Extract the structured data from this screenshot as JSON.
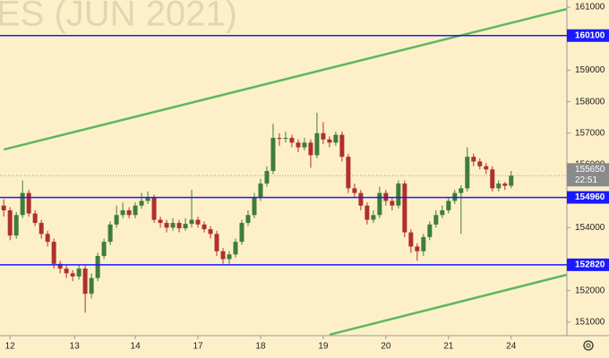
{
  "chart_data": {
    "type": "candlestick",
    "title": "ES (JUN 2021)",
    "xlim": [
      -0.6,
      89.9
    ],
    "xticks": [
      {
        "value": 1,
        "label": "12"
      },
      {
        "value": 11.3,
        "label": "13"
      },
      {
        "value": 21,
        "label": "14"
      },
      {
        "value": 31,
        "label": "17"
      },
      {
        "value": 41,
        "label": "18"
      },
      {
        "value": 51,
        "label": "19"
      },
      {
        "value": 61,
        "label": "20"
      },
      {
        "value": 71,
        "label": "21"
      },
      {
        "value": 81,
        "label": "24"
      }
    ],
    "ylim": [
      150570,
      161230
    ],
    "yticks": [
      151000,
      152000,
      154000,
      156000,
      157000,
      158000,
      159000,
      161000
    ],
    "up_color": "#3f7d3a",
    "down_color": "#b0302b",
    "open": [
      154700,
      154550,
      153750,
      154400,
      155100,
      154450,
      154150,
      153800,
      153550,
      152850,
      152700,
      152550,
      152450,
      152700,
      151900,
      152400,
      153100,
      153550,
      154100,
      154400,
      154550,
      154400,
      154700,
      154850,
      154950,
      154250,
      154150,
      154000,
      154150,
      153980,
      154120,
      154250,
      154100,
      153950,
      153800,
      153250,
      153000,
      153150,
      153550,
      154150,
      154400,
      154950,
      155400,
      155800,
      156850,
      156820,
      156850,
      156700,
      156550,
      156700,
      156300,
      157000,
      156800,
      156700,
      156950,
      156250,
      155250,
      155100,
      154700,
      154250,
      154400,
      155100,
      154850,
      154700,
      155400,
      153850,
      153400,
      153250,
      153700,
      154100,
      154400,
      154550,
      154850,
      155100,
      155250,
      156250,
      156100,
      155950,
      155850,
      155250,
      155400,
      155330
    ],
    "high": [
      154900,
      154650,
      154500,
      155500,
      155200,
      154550,
      154250,
      153900,
      153650,
      152950,
      152800,
      152650,
      152800,
      152800,
      152550,
      153200,
      153650,
      154200,
      154700,
      154800,
      154650,
      154800,
      155100,
      155150,
      155050,
      154350,
      154250,
      154300,
      154250,
      154300,
      155200,
      154350,
      154200,
      154050,
      153900,
      153350,
      153250,
      153650,
      154250,
      154550,
      155100,
      155550,
      155950,
      157300,
      157000,
      157050,
      156950,
      156800,
      156850,
      156800,
      157650,
      157350,
      156900,
      157050,
      157050,
      156350,
      155400,
      155200,
      154800,
      154550,
      155300,
      155200,
      154950,
      155500,
      155500,
      153950,
      153500,
      153800,
      154200,
      154550,
      154700,
      154950,
      155200,
      155350,
      156550,
      156350,
      156200,
      156050,
      155950,
      155500,
      155450,
      155800
    ],
    "low": [
      154350,
      153600,
      153650,
      154300,
      154350,
      154050,
      153650,
      153400,
      152700,
      152550,
      152400,
      152300,
      152350,
      151300,
      151750,
      152300,
      153000,
      153450,
      154000,
      154300,
      154300,
      154300,
      154600,
      154750,
      154150,
      154000,
      153850,
      153900,
      153850,
      153900,
      154000,
      154000,
      153850,
      153650,
      153100,
      152850,
      152850,
      153050,
      153450,
      154050,
      154300,
      154850,
      155300,
      155700,
      156600,
      156700,
      156550,
      156400,
      156450,
      155900,
      156200,
      156650,
      156550,
      156600,
      156100,
      155100,
      154950,
      154550,
      154100,
      154150,
      154300,
      154700,
      154550,
      154600,
      153700,
      153200,
      152950,
      153100,
      153600,
      154000,
      154300,
      154450,
      154750,
      153800,
      155150,
      155950,
      155850,
      155700,
      155150,
      155150,
      155200,
      155250
    ],
    "close": [
      154550,
      153750,
      154400,
      155100,
      154450,
      154150,
      153800,
      153550,
      152850,
      152700,
      152550,
      152450,
      152700,
      151900,
      152400,
      153100,
      153550,
      154100,
      154400,
      154550,
      154400,
      154700,
      154850,
      154950,
      154250,
      154150,
      154000,
      154150,
      153980,
      154120,
      154250,
      154100,
      153950,
      153800,
      153250,
      153000,
      153150,
      153550,
      154150,
      154400,
      154950,
      155400,
      155800,
      156850,
      156820,
      156850,
      156700,
      156550,
      156700,
      156300,
      157000,
      156800,
      156700,
      156950,
      156250,
      155250,
      155100,
      154700,
      154250,
      154400,
      155100,
      154850,
      154700,
      155400,
      153850,
      153400,
      153250,
      153700,
      154100,
      154400,
      154550,
      154850,
      155100,
      155250,
      156250,
      156100,
      155950,
      155850,
      155250,
      155400,
      155330,
      155650
    ],
    "levels": [
      160100,
      154960,
      152820
    ],
    "level_color": "#1a1aff",
    "last_price": 155650,
    "countdown": "22:51",
    "trendlines": [
      {
        "x": [
          0,
          89.8
        ],
        "y": [
          156480,
          160940
        ]
      },
      {
        "x": [
          52,
          89.8
        ],
        "y": [
          150600,
          152500
        ]
      }
    ],
    "trend_color": "#5cb85c"
  }
}
